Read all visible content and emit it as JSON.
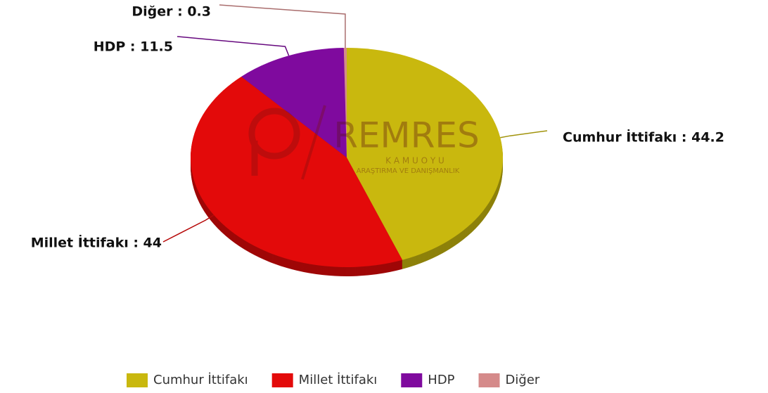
{
  "chart_data": {
    "type": "pie",
    "categories": [
      "Cumhur İttifakı",
      "Millet İttifakı",
      "HDP",
      "Diğer"
    ],
    "values": [
      44.2,
      44,
      11.5,
      0.3
    ],
    "value_labels": [
      "Cumhur İttifakı : 44.2",
      "Millet İttifakı : 44",
      "HDP : 11.5",
      "Diğer : 0.3"
    ],
    "colors": [
      "#c9b80e",
      "#e30a0a",
      "#7f0a9e",
      "#d58a8a"
    ],
    "legend": "bottom",
    "watermark": {
      "brand": "REMRES",
      "line1": "K A M U O Y U",
      "line2": "ARAŞTIRMA VE DANIŞMANLIK"
    }
  }
}
